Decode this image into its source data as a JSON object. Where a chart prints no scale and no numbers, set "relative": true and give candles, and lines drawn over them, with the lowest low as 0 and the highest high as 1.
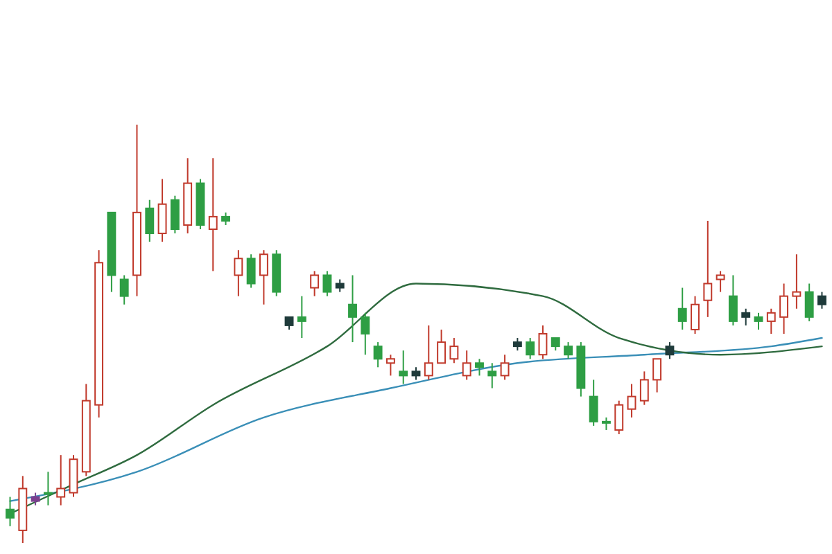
{
  "chart_data": {
    "type": "candlestick",
    "relative": true,
    "categories": [
      null,
      null,
      null,
      null,
      null,
      null,
      null,
      null,
      null,
      null,
      null,
      null,
      null,
      null,
      null,
      null,
      null,
      null,
      null,
      null,
      null,
      null,
      null,
      null,
      null,
      null,
      null,
      null,
      null,
      null,
      null,
      null,
      null,
      null,
      null,
      null,
      null,
      null,
      null,
      null,
      null,
      null,
      null,
      null,
      null,
      null,
      null,
      null,
      null,
      null,
      null,
      null,
      null,
      null,
      null,
      null,
      null,
      null,
      null,
      null,
      null,
      null,
      null,
      null,
      null
    ],
    "ohlc": [
      [
        0.08,
        0.11,
        0.04,
        0.06
      ],
      [
        0.03,
        0.16,
        0,
        0.13
      ],
      [
        0.11,
        0.12,
        0.09,
        0.1
      ],
      [
        0.12,
        0.17,
        0.09,
        0.12
      ],
      [
        0.11,
        0.21,
        0.09,
        0.13
      ],
      [
        0.12,
        0.21,
        0.11,
        0.2
      ],
      [
        0.17,
        0.38,
        0.16,
        0.34
      ],
      [
        0.33,
        0.7,
        0.3,
        0.67
      ],
      [
        0.79,
        0.79,
        0.6,
        0.64
      ],
      [
        0.63,
        0.64,
        0.57,
        0.59
      ],
      [
        0.64,
        1,
        0.59,
        0.79
      ],
      [
        0.8,
        0.82,
        0.72,
        0.74
      ],
      [
        0.74,
        0.87,
        0.72,
        0.81
      ],
      [
        0.82,
        0.83,
        0.74,
        0.75
      ],
      [
        0.76,
        0.92,
        0.74,
        0.86
      ],
      [
        0.86,
        0.87,
        0.75,
        0.76
      ],
      [
        0.75,
        0.92,
        0.65,
        0.78
      ],
      [
        0.78,
        0.79,
        0.76,
        0.77
      ],
      [
        0.64,
        0.7,
        0.59,
        0.68
      ],
      [
        0.68,
        0.69,
        0.61,
        0.62
      ],
      [
        0.64,
        0.7,
        0.57,
        0.69
      ],
      [
        0.69,
        0.7,
        0.59,
        0.6
      ],
      [
        0.54,
        0.54,
        0.51,
        0.52
      ],
      [
        0.54,
        0.59,
        0.49,
        0.53
      ],
      [
        0.61,
        0.65,
        0.59,
        0.64
      ],
      [
        0.64,
        0.65,
        0.59,
        0.6
      ],
      [
        0.62,
        0.63,
        0.6,
        0.61
      ],
      [
        0.57,
        0.64,
        0.48,
        0.54
      ],
      [
        0.54,
        0.55,
        0.45,
        0.5
      ],
      [
        0.47,
        0.48,
        0.42,
        0.44
      ],
      [
        0.43,
        0.45,
        0.4,
        0.44
      ],
      [
        0.41,
        0.46,
        0.38,
        0.4
      ],
      [
        0.41,
        0.42,
        0.39,
        0.4
      ],
      [
        0.4,
        0.52,
        0.39,
        0.43
      ],
      [
        0.43,
        0.51,
        0.43,
        0.48
      ],
      [
        0.44,
        0.49,
        0.43,
        0.47
      ],
      [
        0.4,
        0.46,
        0.39,
        0.43
      ],
      [
        0.43,
        0.44,
        0.4,
        0.42
      ],
      [
        0.41,
        0.43,
        0.37,
        0.4
      ],
      [
        0.4,
        0.45,
        0.39,
        0.43
      ],
      [
        0.48,
        0.49,
        0.46,
        0.47
      ],
      [
        0.48,
        0.49,
        0.44,
        0.45
      ],
      [
        0.45,
        0.52,
        0.44,
        0.5
      ],
      [
        0.49,
        0.49,
        0.46,
        0.47
      ],
      [
        0.47,
        0.48,
        0.44,
        0.45
      ],
      [
        0.47,
        0.48,
        0.35,
        0.37
      ],
      [
        0.35,
        0.39,
        0.28,
        0.29
      ],
      [
        0.29,
        0.3,
        0.27,
        0.29
      ],
      [
        0.27,
        0.34,
        0.26,
        0.33
      ],
      [
        0.32,
        0.38,
        0.3,
        0.35
      ],
      [
        0.34,
        0.41,
        0.33,
        0.39
      ],
      [
        0.39,
        0.44,
        0.36,
        0.44
      ],
      [
        0.47,
        0.48,
        0.44,
        0.45
      ],
      [
        0.56,
        0.61,
        0.51,
        0.53
      ],
      [
        0.51,
        0.59,
        0.5,
        0.57
      ],
      [
        0.58,
        0.77,
        0.54,
        0.62
      ],
      [
        0.63,
        0.65,
        0.6,
        0.64
      ],
      [
        0.59,
        0.64,
        0.52,
        0.53
      ],
      [
        0.55,
        0.56,
        0.52,
        0.54
      ],
      [
        0.54,
        0.55,
        0.51,
        0.53
      ],
      [
        0.53,
        0.56,
        0.5,
        0.55
      ],
      [
        0.54,
        0.62,
        0.5,
        0.59
      ],
      [
        0.59,
        0.69,
        0.56,
        0.6
      ],
      [
        0.6,
        0.62,
        0.53,
        0.54
      ],
      [
        0.59,
        0.6,
        0.56,
        0.57
      ]
    ],
    "colors": [
      "#2e9e44",
      "#c0392b",
      "#7b3f8f",
      "#2e9e44",
      "#c0392b",
      "#c0392b",
      "#c0392b",
      "#c0392b",
      "#2e9e44",
      "#2e9e44",
      "#c0392b",
      "#2e9e44",
      "#c0392b",
      "#2e9e44",
      "#c0392b",
      "#2e9e44",
      "#c0392b",
      "#2e9e44",
      "#c0392b",
      "#2e9e44",
      "#c0392b",
      "#2e9e44",
      "#1f3b3b",
      "#2e9e44",
      "#c0392b",
      "#2e9e44",
      "#1f3b3b",
      "#2e9e44",
      "#2e9e44",
      "#2e9e44",
      "#c0392b",
      "#2e9e44",
      "#1f3b3b",
      "#c0392b",
      "#c0392b",
      "#c0392b",
      "#c0392b",
      "#2e9e44",
      "#2e9e44",
      "#c0392b",
      "#1f3b3b",
      "#2e9e44",
      "#c0392b",
      "#2e9e44",
      "#2e9e44",
      "#2e9e44",
      "#2e9e44",
      "#2e9e44",
      "#c0392b",
      "#c0392b",
      "#c0392b",
      "#c0392b",
      "#1f3b3b",
      "#2e9e44",
      "#c0392b",
      "#c0392b",
      "#c0392b",
      "#2e9e44",
      "#1f3b3b",
      "#2e9e44",
      "#c0392b",
      "#c0392b",
      "#c0392b",
      "#2e9e44",
      "#1f3b3b"
    ],
    "series": [
      {
        "type": "line",
        "color": "#3a8fb7",
        "values": [
          0.1,
          null,
          null,
          null,
          null,
          null,
          null,
          null,
          null,
          null,
          0.17,
          null,
          null,
          null,
          null,
          null,
          null,
          null,
          null,
          null,
          0.3,
          null,
          null,
          null,
          null,
          null,
          null,
          null,
          null,
          null,
          0.37,
          null,
          null,
          null,
          null,
          null,
          null,
          null,
          null,
          null,
          0.43,
          null,
          null,
          null,
          null,
          null,
          null,
          null,
          null,
          null,
          0.45,
          null,
          null,
          null,
          null,
          null,
          null,
          null,
          null,
          null,
          0.47,
          null,
          null,
          null,
          0.49
        ]
      },
      {
        "type": "line",
        "color": "#2f6b3f",
        "values": [
          0.07,
          null,
          null,
          null,
          null,
          0.14,
          null,
          null,
          null,
          null,
          0.21,
          null,
          null,
          null,
          null,
          null,
          0.33,
          null,
          null,
          null,
          null,
          null,
          null,
          null,
          null,
          0.47,
          null,
          null,
          null,
          null,
          null,
          null,
          0.62,
          null,
          null,
          null,
          null,
          null,
          null,
          null,
          null,
          null,
          0.59,
          null,
          null,
          null,
          null,
          null,
          0.49,
          null,
          null,
          null,
          null,
          null,
          null,
          null,
          0.45,
          null,
          null,
          null,
          null,
          null,
          null,
          null,
          0.47
        ]
      }
    ]
  }
}
